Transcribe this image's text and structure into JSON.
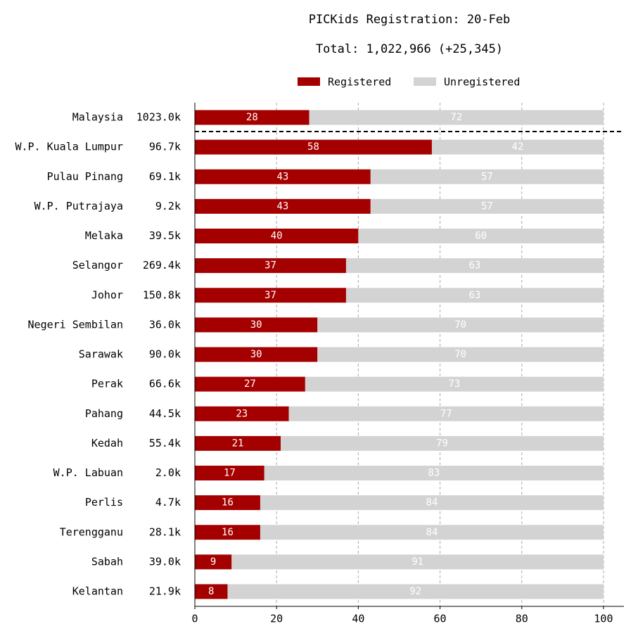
{
  "chart_data": {
    "type": "stacked-bar-horizontal",
    "title": "PICKids Registration: 20-Feb",
    "subtitle": "Total: 1,022,966 (+25,345)",
    "categories": [
      "Malaysia",
      "W.P. Kuala Lumpur",
      "Pulau Pinang",
      "W.P. Putrajaya",
      "Melaka",
      "Selangor",
      "Johor",
      "Negeri Sembilan",
      "Sarawak",
      "Perak",
      "Pahang",
      "Kedah",
      "W.P. Labuan",
      "Perlis",
      "Terengganu",
      "Sabah",
      "Kelantan"
    ],
    "category_totals": [
      "1023.0k",
      "96.7k",
      "69.1k",
      "9.2k",
      "39.5k",
      "269.4k",
      "150.8k",
      "36.0k",
      "90.0k",
      "66.6k",
      "44.5k",
      "55.4k",
      "2.0k",
      "4.7k",
      "28.1k",
      "39.0k",
      "21.9k"
    ],
    "series": [
      {
        "name": "Registered",
        "color": "#a50000",
        "values": [
          28,
          58,
          43,
          43,
          40,
          37,
          37,
          30,
          30,
          27,
          23,
          21,
          17,
          16,
          16,
          9,
          8
        ]
      },
      {
        "name": "Unregistered",
        "color": "#d3d3d3",
        "values": [
          72,
          42,
          57,
          57,
          60,
          63,
          63,
          70,
          70,
          73,
          77,
          79,
          83,
          84,
          84,
          91,
          92
        ]
      }
    ],
    "xlim": [
      0,
      105
    ],
    "xticks": [
      0,
      20,
      40,
      60,
      80,
      100
    ],
    "grid": true
  }
}
